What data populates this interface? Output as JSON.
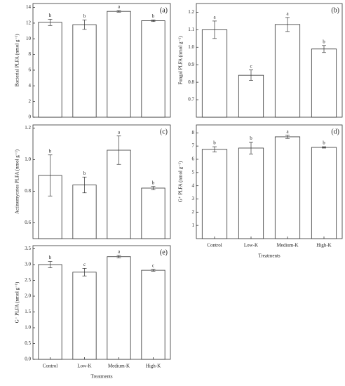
{
  "chart_data": [
    {
      "type": "bar",
      "tag": "(a)",
      "ylabel": "Bacterial PLFA (nmol g⁻¹)",
      "values": [
        12.1,
        11.8,
        13.5,
        12.3
      ],
      "errors": [
        0.4,
        0.6,
        0.1,
        0.1
      ],
      "letters": [
        "b",
        "b",
        "a",
        "b"
      ],
      "ylim": [
        0,
        14.5
      ],
      "yticks": [
        0,
        2,
        4,
        6,
        8,
        10,
        12,
        14
      ],
      "color": "#ffffff"
    },
    {
      "type": "bar",
      "tag": "(b)",
      "ylabel": "Fungal PLFA (nmol g⁻¹)",
      "values": [
        1.1,
        0.84,
        1.13,
        0.99
      ],
      "errors": [
        0.05,
        0.03,
        0.04,
        0.02
      ],
      "letters": [
        "a",
        "c",
        "a",
        "b"
      ],
      "ylim": [
        0.6,
        1.25
      ],
      "yticks": [
        0.7,
        0.8,
        0.9,
        {
          "value": 1.0,
          "label": "1.0"
        },
        1.1,
        1.2
      ],
      "color": "#ffffff"
    },
    {
      "type": "bar",
      "tag": "(c)",
      "ylabel": "Actinomycetes PLFA (nmol g⁻¹)",
      "values": [
        0.9,
        0.84,
        1.06,
        0.82
      ],
      "errors": [
        0.13,
        0.05,
        0.09,
        0.01
      ],
      "letters": [
        "b",
        "b",
        "a",
        "b"
      ],
      "ylim": [
        0.5,
        1.22
      ],
      "yticks": [
        0.6,
        0.8,
        {
          "value": 1.0,
          "label": "1.0"
        },
        1.2
      ],
      "color": "#ffffff"
    },
    {
      "type": "bar",
      "tag": "(d)",
      "ylabel": "G⁺ PLFA (nmol g⁻¹)",
      "xlabel": "Treatments",
      "categories": [
        "Control",
        "Low-K",
        "Medium-K",
        "High-K"
      ],
      "values": [
        6.75,
        6.85,
        7.7,
        6.9
      ],
      "errors": [
        0.2,
        0.45,
        0.12,
        0.05
      ],
      "letters": [
        "b",
        "b",
        "a",
        "b"
      ],
      "ylim": [
        0,
        8.6
      ],
      "yticks": [
        1,
        2,
        3,
        4,
        5,
        6,
        7,
        8
      ],
      "color": "#ffffff"
    },
    {
      "type": "bar",
      "tag": "(e)",
      "ylabel": "G⁻ PLFA (nmol g⁻¹)",
      "xlabel": "Treatments",
      "categories": [
        "Control",
        "Low-K",
        "Medium-K",
        "High-K"
      ],
      "values": [
        3.0,
        2.76,
        3.25,
        2.82
      ],
      "errors": [
        0.1,
        0.12,
        0.04,
        0.03
      ],
      "letters": [
        "b",
        "c",
        "a",
        "c"
      ],
      "ylim": [
        0,
        3.6
      ],
      "yticks": [
        {
          "value": 0.0,
          "label": "0.0"
        },
        0.5,
        {
          "value": 1.0,
          "label": "1.0"
        },
        1.5,
        {
          "value": 2.0,
          "label": "2.0"
        },
        2.5,
        {
          "value": 3.0,
          "label": "3.0"
        },
        3.5
      ],
      "color": "#ffffff"
    }
  ]
}
